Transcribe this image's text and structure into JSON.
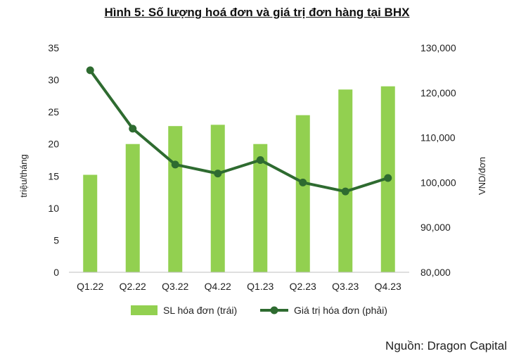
{
  "title": "Hình 5: Số lượng hoá đơn và giá trị đơn hàng tại BHX",
  "source": "Nguồn: Dragon Capital",
  "colors": {
    "bar": "#92d050",
    "line": "#2e6b30",
    "axis": "#bfbfbf"
  },
  "chart_data": {
    "type": "bar",
    "categories": [
      "Q1.22",
      "Q2.22",
      "Q3.22",
      "Q4.22",
      "Q1.23",
      "Q2.23",
      "Q3.23",
      "Q4.23"
    ],
    "series": [
      {
        "name": "SL hóa đơn (trái)",
        "type": "bar",
        "axis": "left",
        "values": [
          15.2,
          20.0,
          22.8,
          23.0,
          20.0,
          24.5,
          28.5,
          29.0
        ]
      },
      {
        "name": "Giá trị hóa đơn (phải)",
        "type": "line",
        "axis": "right",
        "values": [
          125000,
          112000,
          104000,
          102000,
          105000,
          100000,
          98000,
          101000
        ]
      }
    ],
    "ylabel": "triệu/tháng",
    "y2label": "VND/đơn",
    "ylim": [
      0,
      35
    ],
    "y2lim": [
      80000,
      130000
    ],
    "yticks": [
      "0",
      "5",
      "10",
      "15",
      "20",
      "25",
      "30",
      "35"
    ],
    "y2ticks": [
      "80,000",
      "90,000",
      "100,000",
      "110,000",
      "120,000",
      "130,000"
    ],
    "grid": false,
    "legend": "bottom"
  }
}
